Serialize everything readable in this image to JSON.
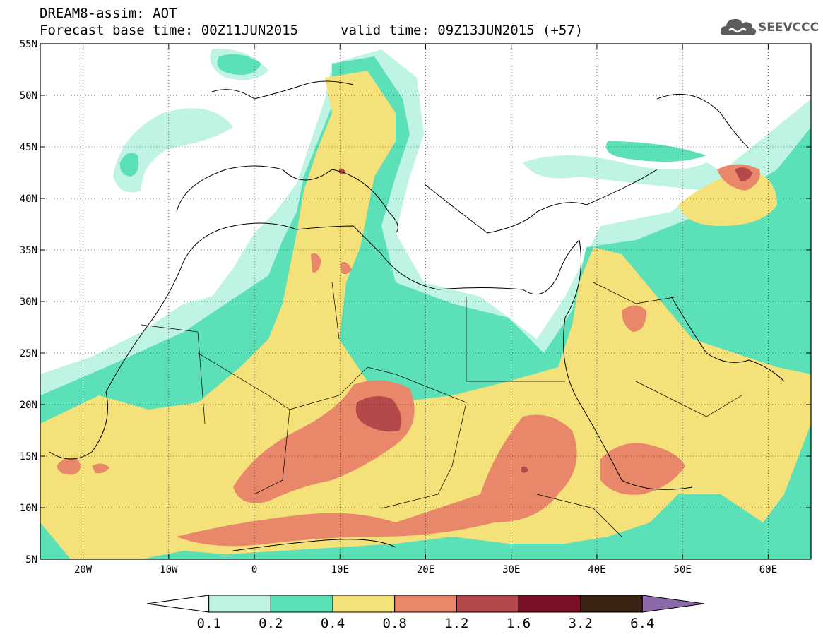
{
  "header": {
    "line1": "DREAM8-assim: AOT",
    "line2": "Forecast base time: 00Z11JUN2015",
    "line3": "valid time: 09Z13JUN2015 (+57)"
  },
  "logo": {
    "text": "SEEVCCC",
    "icon": "cloud-icon"
  },
  "map": {
    "variable": "AOT",
    "lon_range": [
      -25,
      65
    ],
    "lat_range": [
      5,
      55
    ],
    "lon_ticks": [
      {
        "lon": -20,
        "label": "20W"
      },
      {
        "lon": -10,
        "label": "10W"
      },
      {
        "lon": 0,
        "label": "0"
      },
      {
        "lon": 10,
        "label": "10E"
      },
      {
        "lon": 20,
        "label": "20E"
      },
      {
        "lon": 30,
        "label": "30E"
      },
      {
        "lon": 40,
        "label": "40E"
      },
      {
        "lon": 50,
        "label": "50E"
      },
      {
        "lon": 60,
        "label": "60E"
      }
    ],
    "lat_ticks": [
      {
        "lat": 55,
        "label": "55N"
      },
      {
        "lat": 50,
        "label": "50N"
      },
      {
        "lat": 45,
        "label": "45N"
      },
      {
        "lat": 40,
        "label": "40N"
      },
      {
        "lat": 35,
        "label": "35N"
      },
      {
        "lat": 30,
        "label": "30N"
      },
      {
        "lat": 25,
        "label": "25N"
      },
      {
        "lat": 20,
        "label": "20N"
      },
      {
        "lat": 15,
        "label": "15N"
      },
      {
        "lat": 10,
        "label": "10N"
      },
      {
        "lat": 5,
        "label": "5N"
      }
    ],
    "grid": true
  },
  "colorbar": {
    "colors": [
      "#ffffff",
      "#bff4e4",
      "#5ce0b8",
      "#f5e17a",
      "#e8876a",
      "#b4484b",
      "#7a0f27",
      "#3b2414",
      "#8c6aaa"
    ],
    "labels": [
      "0.1",
      "0.2",
      "0.4",
      "0.8",
      "1.2",
      "1.6",
      "3.2",
      "6.4"
    ]
  }
}
